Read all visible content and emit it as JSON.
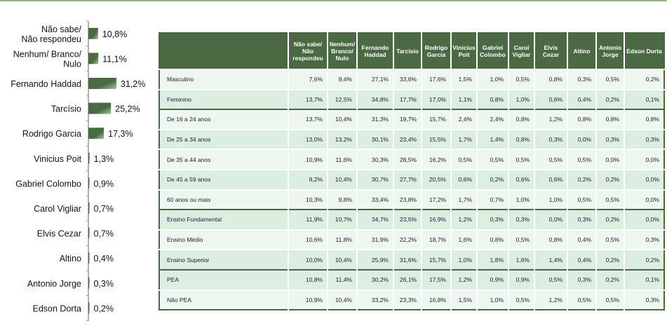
{
  "chart_data": {
    "type": "bar",
    "orientation": "horizontal",
    "categories": [
      [
        "Não sabe/",
        "Não respondeu"
      ],
      [
        "Nenhum/ Branco/",
        "Nulo"
      ],
      [
        "Fernando Haddad"
      ],
      [
        "Tarcísio"
      ],
      [
        "Rodrigo Garcia"
      ],
      [
        "Vinicius Poit"
      ],
      [
        "Gabriel Colombo"
      ],
      [
        "Carol Vigliar"
      ],
      [
        "Elvis Cezar"
      ],
      [
        "Altino"
      ],
      [
        "Antonio Jorge"
      ],
      [
        "Edson Dorta"
      ]
    ],
    "values": [
      10.8,
      11.1,
      31.2,
      25.2,
      17.3,
      1.3,
      0.9,
      0.7,
      0.7,
      0.4,
      0.3,
      0.2
    ],
    "labels": [
      "10,8%",
      "11,1%",
      "31,2%",
      "25,2%",
      "17,3%",
      "1,3%",
      "0,9%",
      "0,7%",
      "0,7%",
      "0,4%",
      "0,3%",
      "0,2%"
    ],
    "bar_color": "#4b6a44"
  },
  "table": {
    "headers": [
      "",
      "Não sabe/ Não respondeu",
      "Nenhum/ Branco/ Nulo",
      "Fernando Haddad",
      "Tarcísio",
      "Rodrigo Garcia",
      "Vinicius Poit",
      "Gabriel Colombo",
      "Carol Vigliar",
      "Elvis Cezar",
      "Altino",
      "Antonio Jorge",
      "Edson Dorta"
    ],
    "rows": [
      {
        "label": "Masculino",
        "values": [
          "7,6%",
          "9,4%",
          "27,1%",
          "33,6%",
          "17,6%",
          "1,5%",
          "1,0%",
          "0,5%",
          "0,8%",
          "0,3%",
          "0,5%",
          "0,2%"
        ]
      },
      {
        "label": "Feminino",
        "values": [
          "13,7%",
          "12,5%",
          "34,8%",
          "17,7%",
          "17,0%",
          "1,1%",
          "0,8%",
          "1,0%",
          "0,6%",
          "0,4%",
          "0,2%",
          "0,1%"
        ]
      },
      {
        "label": "De 16 a 24 anos",
        "values": [
          "13,7%",
          "10,4%",
          "31,3%",
          "19,7%",
          "15,7%",
          "2,4%",
          "2,4%",
          "0,8%",
          "1,2%",
          "0,8%",
          "0,8%",
          "0,8%"
        ]
      },
      {
        "label": "De 25 a 34 anos",
        "values": [
          "13,0%",
          "13,2%",
          "30,1%",
          "23,4%",
          "15,5%",
          "1,7%",
          "1,4%",
          "0,8%",
          "0,3%",
          "0,0%",
          "0,3%",
          "0,3%"
        ]
      },
      {
        "label": "De 35 a 44 anos",
        "values": [
          "10,9%",
          "11,6%",
          "30,3%",
          "28,5%",
          "16,2%",
          "0,5%",
          "0,5%",
          "0,5%",
          "0,5%",
          "0,5%",
          "0,0%",
          "0,0%"
        ]
      },
      {
        "label": "De 45 a 59 anos",
        "values": [
          "8,2%",
          "10,4%",
          "30,7%",
          "27,7%",
          "20,5%",
          "0,6%",
          "0,2%",
          "0,6%",
          "0,6%",
          "0,2%",
          "0,2%",
          "0,0%"
        ]
      },
      {
        "label": "60 anos ou mais",
        "values": [
          "10,3%",
          "9,8%",
          "33,4%",
          "23,8%",
          "17,2%",
          "1,7%",
          "0,7%",
          "1,0%",
          "1,0%",
          "0,5%",
          "0,5%",
          "0,0%"
        ]
      },
      {
        "label": "Ensino Fundamental",
        "values": [
          "11,9%",
          "10,7%",
          "34,7%",
          "23,5%",
          "16,9%",
          "1,2%",
          "0,3%",
          "0,3%",
          "0,0%",
          "0,3%",
          "0,2%",
          "0,0%"
        ]
      },
      {
        "label": "Ensino Médio",
        "values": [
          "10,6%",
          "11,8%",
          "31,9%",
          "22,2%",
          "18,7%",
          "1,6%",
          "0,8%",
          "0,5%",
          "0,8%",
          "0,4%",
          "0,5%",
          "0,3%"
        ]
      },
      {
        "label": "Ensino Superior",
        "values": [
          "10,0%",
          "10,4%",
          "25,9%",
          "31,6%",
          "15,7%",
          "1,0%",
          "1,8%",
          "1,6%",
          "1,4%",
          "0,4%",
          "0,2%",
          "0,2%"
        ]
      },
      {
        "label": "PEA",
        "values": [
          "10,8%",
          "11,4%",
          "30,2%",
          "26,1%",
          "17,5%",
          "1,2%",
          "0,9%",
          "0,9%",
          "0,5%",
          "0,3%",
          "0,2%",
          "0,1%"
        ]
      },
      {
        "label": "Não PEA",
        "values": [
          "10,9%",
          "10,4%",
          "33,2%",
          "23,3%",
          "16,8%",
          "1,5%",
          "1,0%",
          "0,5%",
          "1,2%",
          "0,5%",
          "0,5%",
          "0,3%"
        ]
      }
    ]
  }
}
